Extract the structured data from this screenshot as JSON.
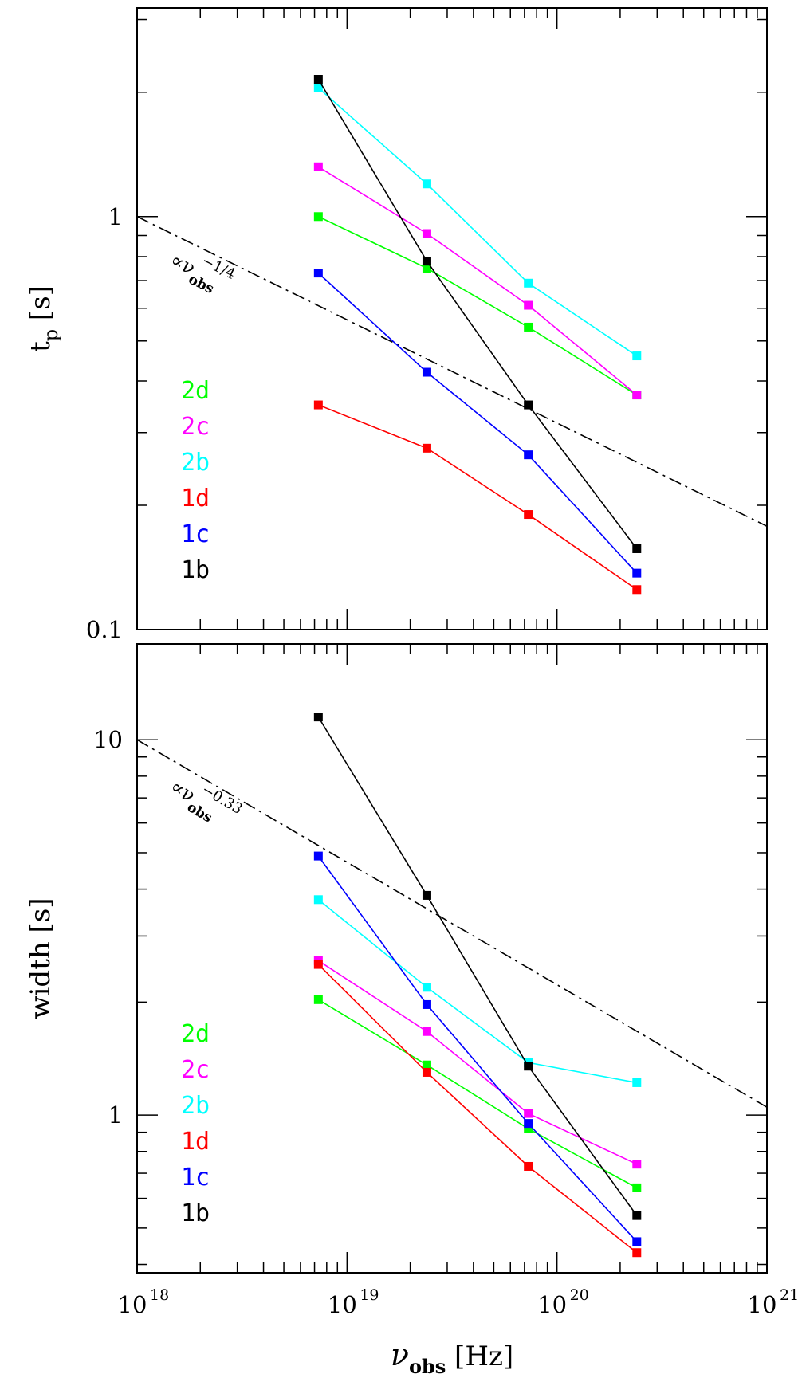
{
  "chart_data": [
    {
      "type": "line",
      "id": "top",
      "ylabel": "t",
      "ylabel_sub": "p",
      "ylabel_unit": "[s]",
      "xscale": "log",
      "yscale": "log",
      "xlim": [
        1e+18,
        1e+21
      ],
      "ylim": [
        0.1,
        3.2
      ],
      "y_tick_labels": [
        {
          "value": 1,
          "label": "1"
        },
        {
          "value": 0.1,
          "label": "0.1"
        }
      ],
      "x": [
        7.3e+18,
        2.4e+19,
        7.3e+19,
        2.4e+20
      ],
      "series": [
        {
          "name": "2d",
          "color": "#00ff00",
          "values": [
            1.0,
            0.75,
            0.54,
            0.37
          ]
        },
        {
          "name": "2c",
          "color": "#ff00ff",
          "values": [
            1.32,
            0.91,
            0.61,
            0.37
          ]
        },
        {
          "name": "2b",
          "color": "#00ffff",
          "values": [
            2.05,
            1.2,
            0.69,
            0.46
          ]
        },
        {
          "name": "1d",
          "color": "#ff0000",
          "values": [
            0.35,
            0.275,
            0.19,
            0.125
          ]
        },
        {
          "name": "1c",
          "color": "#0000ff",
          "values": [
            0.73,
            0.42,
            0.265,
            0.137
          ]
        },
        {
          "name": "1b",
          "color": "#000000",
          "values": [
            2.15,
            0.78,
            0.35,
            0.157
          ]
        }
      ],
      "reference": {
        "x": [
          1e+18,
          1e+21
        ],
        "y": [
          1.0,
          0.178
        ],
        "dash": "dashdot"
      },
      "annotation": {
        "prefix": "∝ν",
        "sub": "obs",
        "sup": "−1/4"
      }
    },
    {
      "type": "line",
      "id": "bottom",
      "ylabel": "width",
      "ylabel_unit": "[s]",
      "xlabel": "ν",
      "xlabel_sub": "obs",
      "xlabel_unit": "[Hz]",
      "xscale": "log",
      "yscale": "log",
      "xlim": [
        1e+18,
        1e+21
      ],
      "ylim": [
        0.38,
        18
      ],
      "y_tick_labels": [
        {
          "value": 10,
          "label": "10"
        },
        {
          "value": 1,
          "label": "1"
        }
      ],
      "x_tick_labels": [
        {
          "value": 1e+18,
          "base": "10",
          "exp": "18"
        },
        {
          "value": 1e+19,
          "base": "10",
          "exp": "19"
        },
        {
          "value": 1e+20,
          "base": "10",
          "exp": "20"
        },
        {
          "value": 1e+21,
          "base": "10",
          "exp": "21"
        }
      ],
      "x": [
        7.3e+18,
        2.4e+19,
        7.3e+19,
        2.4e+20
      ],
      "series": [
        {
          "name": "2d",
          "color": "#00ff00",
          "values": [
            2.03,
            1.36,
            0.92,
            0.64
          ]
        },
        {
          "name": "2c",
          "color": "#ff00ff",
          "values": [
            2.58,
            1.67,
            1.01,
            0.74
          ]
        },
        {
          "name": "2b",
          "color": "#00ffff",
          "values": [
            3.75,
            2.19,
            1.38,
            1.22
          ]
        },
        {
          "name": "1d",
          "color": "#ff0000",
          "values": [
            2.52,
            1.3,
            0.73,
            0.43
          ]
        },
        {
          "name": "1c",
          "color": "#0000ff",
          "values": [
            4.9,
            1.97,
            0.95,
            0.46
          ]
        },
        {
          "name": "1b",
          "color": "#000000",
          "values": [
            11.5,
            3.85,
            1.35,
            0.54
          ]
        }
      ],
      "reference": {
        "x": [
          1e+18,
          1e+21
        ],
        "y": [
          10.0,
          1.05
        ],
        "dash": "dashdot"
      },
      "annotation": {
        "prefix": "∝ν",
        "sub": "obs",
        "sup": "−0.33"
      }
    }
  ]
}
